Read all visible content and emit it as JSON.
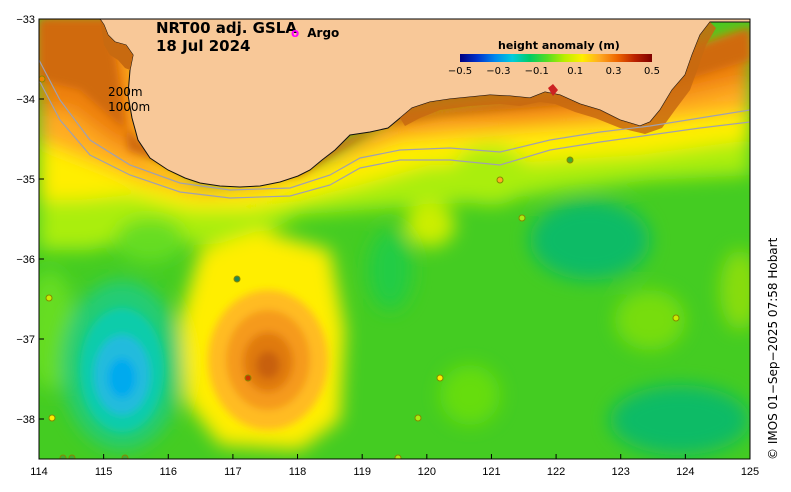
{
  "map": {
    "title_line1": "NRT00 adj. GSLA",
    "title_line2": "18 Jul 2024",
    "argo_legend": "Argo",
    "depth_label_1": "200m",
    "depth_label_2": "1000m",
    "x_ticks": [
      "114",
      "115",
      "116",
      "117",
      "118",
      "119",
      "120",
      "121",
      "122",
      "123",
      "124",
      "125"
    ],
    "y_ticks": [
      "−33",
      "−34",
      "−35",
      "−36",
      "−37",
      "−38"
    ],
    "lon_range": [
      114,
      125
    ],
    "lat_range": [
      -38.5,
      -33
    ],
    "colorbar": {
      "title": "height anomaly (m)",
      "ticks": [
        "−0.5",
        "−0.3",
        "−0.1",
        "0.1",
        "0.3",
        "0.5"
      ],
      "range": [
        -0.5,
        0.5
      ]
    },
    "credit": "© IMOS 01−Sep−2025 07:58 Hobart",
    "colors": {
      "land": "#f8c898",
      "coast_high": "#c86a10",
      "ocean_base": "#44cc22",
      "warm_eddy": "#e08010",
      "cold_eddy": "#22bbdd",
      "argo_marker": "#ff00ff"
    }
  }
}
